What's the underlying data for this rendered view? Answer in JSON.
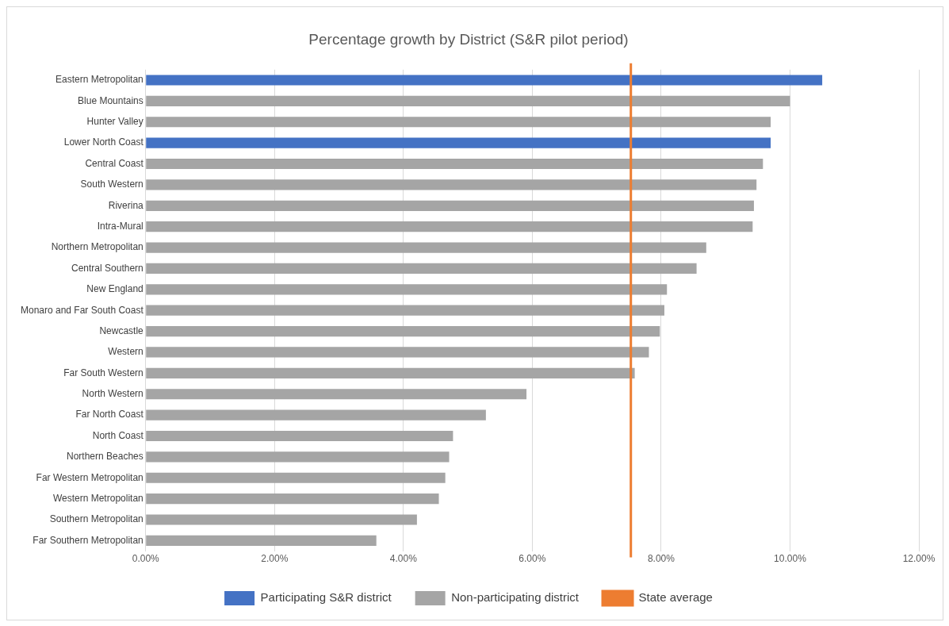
{
  "chart_data": {
    "type": "bar",
    "orientation": "horizontal",
    "stacked": true,
    "title": "Percentage growth by District (S&R pilot period)",
    "categories": [
      "Eastern Metropolitan",
      "Blue Mountains",
      "Hunter Valley",
      "Lower North Coast",
      "Central Coast",
      "South Western",
      "Riverina",
      "Intra-Mural",
      "Northern Metropolitan",
      "Central Southern",
      "New England",
      "Monaro and Far South Coast",
      "Newcastle",
      "Western",
      "Far South Western",
      "North Western",
      "Far North Coast",
      "North Coast",
      "Northern Beaches",
      "Far Western Metropolitan",
      "Western Metropolitan",
      "Southern Metropolitan",
      "Far Southern Metropolitan"
    ],
    "series": [
      {
        "name": "Participating S&R district",
        "color": "#4472c4",
        "values": [
          10.5,
          null,
          null,
          9.7,
          null,
          null,
          null,
          null,
          null,
          null,
          null,
          null,
          null,
          null,
          null,
          null,
          null,
          null,
          null,
          null,
          null,
          null,
          null
        ]
      },
      {
        "name": "Non-participating district",
        "color": "#a5a5a5",
        "values": [
          null,
          10.0,
          9.7,
          null,
          9.58,
          9.48,
          9.44,
          9.42,
          8.7,
          8.55,
          8.09,
          8.05,
          7.98,
          7.81,
          7.59,
          5.91,
          5.28,
          4.77,
          4.71,
          4.65,
          4.55,
          4.21,
          3.58
        ]
      }
    ],
    "xlim": [
      0,
      12
    ],
    "xticks": [
      {
        "value": 0,
        "label": "0.00%"
      },
      {
        "value": 2,
        "label": "2.00%"
      },
      {
        "value": 4,
        "label": "4.00%"
      },
      {
        "value": 6,
        "label": "6.00%"
      },
      {
        "value": 8,
        "label": "8.00%"
      },
      {
        "value": 10,
        "label": "10.00%"
      },
      {
        "value": 12,
        "label": "12.00%"
      }
    ],
    "ref_lines": [
      {
        "axis": "x",
        "value": 7.53,
        "label": "State average",
        "color": "#ed7d31"
      }
    ],
    "grid": "x",
    "legend": "bottom"
  }
}
